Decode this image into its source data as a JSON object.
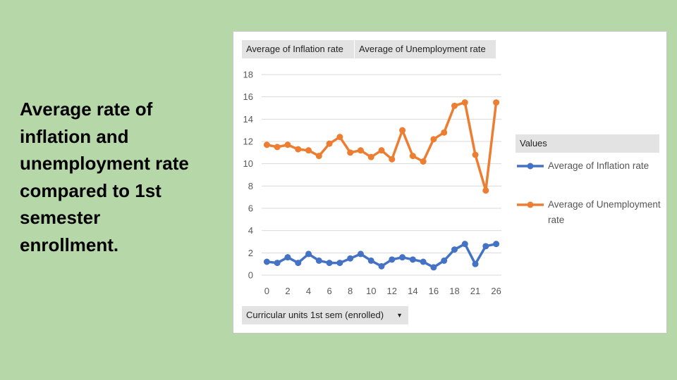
{
  "slide": {
    "title_lines": [
      "Average rate of",
      "inflation and",
      "unemployment rate",
      "compared to 1st",
      "semester",
      "enrollment."
    ]
  },
  "pivot": {
    "field_buttons": [
      "Average of Inflation rate",
      "Average of Unemployment rate"
    ],
    "axis_field": "Curricular units 1st sem (enrolled)",
    "legend_header": "Values"
  },
  "colors": {
    "inflation": "#4472c4",
    "unemployment": "#ed7d31",
    "grid": "#d9d9d9"
  },
  "chart_data": {
    "type": "line",
    "categories": [
      "0",
      "1",
      "2",
      "3",
      "4",
      "5",
      "6",
      "7",
      "8",
      "9",
      "10",
      "11",
      "12",
      "13",
      "14",
      "15",
      "16",
      "17",
      "18",
      "19",
      "21",
      "23",
      "26"
    ],
    "x_tick_labels": [
      "0",
      "2",
      "4",
      "6",
      "8",
      "10",
      "12",
      "14",
      "16",
      "18",
      "21",
      "26"
    ],
    "ylim": [
      0,
      18
    ],
    "yticks": [
      0,
      2,
      4,
      6,
      8,
      10,
      12,
      14,
      16,
      18
    ],
    "grid": true,
    "legend": "right",
    "series": [
      {
        "name": "Average of Inflation rate",
        "values": [
          1.2,
          1.1,
          1.6,
          1.1,
          1.9,
          1.3,
          1.1,
          1.1,
          1.5,
          1.9,
          1.3,
          0.8,
          1.4,
          1.6,
          1.4,
          1.2,
          0.7,
          1.3,
          2.3,
          2.8,
          1.0,
          2.6,
          2.8
        ]
      },
      {
        "name": "Average of Unemployment rate",
        "values": [
          11.7,
          11.5,
          11.7,
          11.3,
          11.2,
          10.7,
          11.8,
          12.4,
          11.0,
          11.2,
          10.6,
          11.2,
          10.4,
          13.0,
          10.7,
          10.2,
          12.2,
          12.8,
          15.2,
          15.5,
          10.8,
          7.6,
          15.5
        ]
      }
    ]
  }
}
